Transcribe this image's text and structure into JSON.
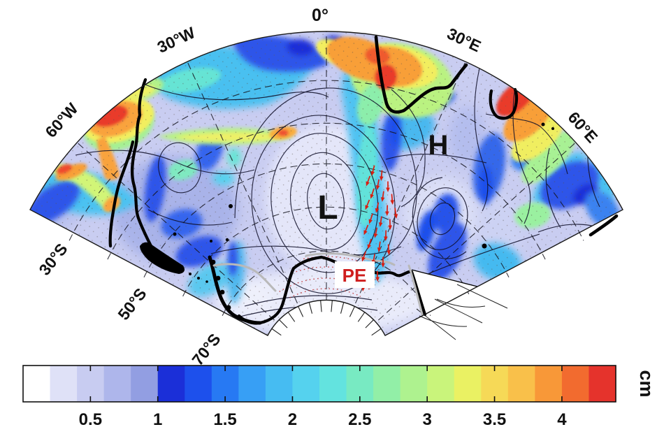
{
  "map": {
    "projection_note": "south polar fan sector 60W-60E",
    "meridian_labels": [
      "60°W",
      "30°W",
      "0°",
      "30°E",
      "60°E"
    ],
    "parallel_labels": [
      "30°S",
      "50°S",
      "70°S"
    ],
    "annotations": {
      "high": "H",
      "low": "L",
      "station": "PE",
      "station_color": "#cf1d1d"
    },
    "vectors": [
      [
        534,
        243,
        15
      ],
      [
        546,
        250,
        5
      ],
      [
        527,
        258,
        20
      ],
      [
        541,
        263,
        10
      ],
      [
        555,
        266,
        0
      ],
      [
        533,
        276,
        18
      ],
      [
        548,
        280,
        8
      ],
      [
        561,
        284,
        -5
      ],
      [
        526,
        292,
        22
      ],
      [
        540,
        296,
        12
      ],
      [
        554,
        300,
        2
      ],
      [
        566,
        304,
        -8
      ],
      [
        531,
        312,
        18
      ],
      [
        545,
        316,
        8
      ],
      [
        558,
        320,
        -2
      ],
      [
        524,
        328,
        22
      ],
      [
        538,
        332,
        12
      ],
      [
        552,
        336,
        2
      ],
      [
        529,
        348,
        18
      ],
      [
        543,
        352,
        8
      ],
      [
        556,
        356,
        -4
      ],
      [
        521,
        366,
        20
      ],
      [
        535,
        370,
        10
      ],
      [
        548,
        374,
        0
      ],
      [
        514,
        386,
        18
      ],
      [
        528,
        390,
        8
      ],
      [
        540,
        394,
        -2
      ],
      [
        508,
        402,
        15
      ],
      [
        520,
        408,
        6
      ]
    ],
    "vector_color": "#d81f12"
  },
  "colorbar": {
    "unit": "cm",
    "vmin": 0,
    "vmax": 4.4,
    "tick_values": [
      0.5,
      1,
      1.5,
      2,
      2.5,
      3,
      3.5,
      4
    ],
    "tick_labels": [
      "0.5",
      "1",
      "1.5",
      "2",
      "2.5",
      "3",
      "3.5",
      "4"
    ],
    "colors": [
      "#ffffff",
      "#dfe1f7",
      "#c8ccf1",
      "#aeb6eb",
      "#929ee2",
      "#1b2fd8",
      "#1d50ec",
      "#2779f3",
      "#379ff5",
      "#46bcf2",
      "#55d2ee",
      "#63e3df",
      "#78eac2",
      "#92efa7",
      "#aef28f",
      "#c9f47b",
      "#eaf163",
      "#f6d957",
      "#f9c04a",
      "#f89838",
      "#f26b2f",
      "#e5332c"
    ]
  },
  "chart_data": {
    "type": "heatmap",
    "title": "",
    "description": "Filled-contour field (units cm) over the Atlantic/Indian sector of the Southern Ocean (60°W to 60°E) on a south polar fan projection; black contour lines with a closed low (L) near the Greenwich meridian and a high (H) to the northeast; red vectors cluster north of station PE on the Antarctic coast; coastlines of South America, southern Africa, Madagascar and Antarctica drawn in thick black; grey line marks the ice front along the Antarctic coast.",
    "colorbar_ticks": [
      0.5,
      1,
      1.5,
      2,
      2.5,
      3,
      3.5,
      4
    ],
    "colorbar_range": [
      0,
      4.4
    ],
    "unit": "cm",
    "palette": [
      "#ffffff",
      "#dfe1f7",
      "#c8ccf1",
      "#aeb6eb",
      "#929ee2",
      "#1b2fd8",
      "#1d50ec",
      "#2779f3",
      "#379ff5",
      "#46bcf2",
      "#55d2ee",
      "#63e3df",
      "#78eac2",
      "#92efa7",
      "#aef28f",
      "#c9f47b",
      "#eaf163",
      "#f6d957",
      "#f9c04a",
      "#f89838",
      "#f26b2f",
      "#e5332c"
    ],
    "annotations": [
      "H",
      "L",
      "PE"
    ],
    "meridians": [
      "60°W",
      "30°W",
      "0°",
      "30°E",
      "60°E"
    ],
    "parallels": [
      "30°S",
      "50°S",
      "70°S"
    ],
    "legend_position": "bottom colorbar"
  }
}
